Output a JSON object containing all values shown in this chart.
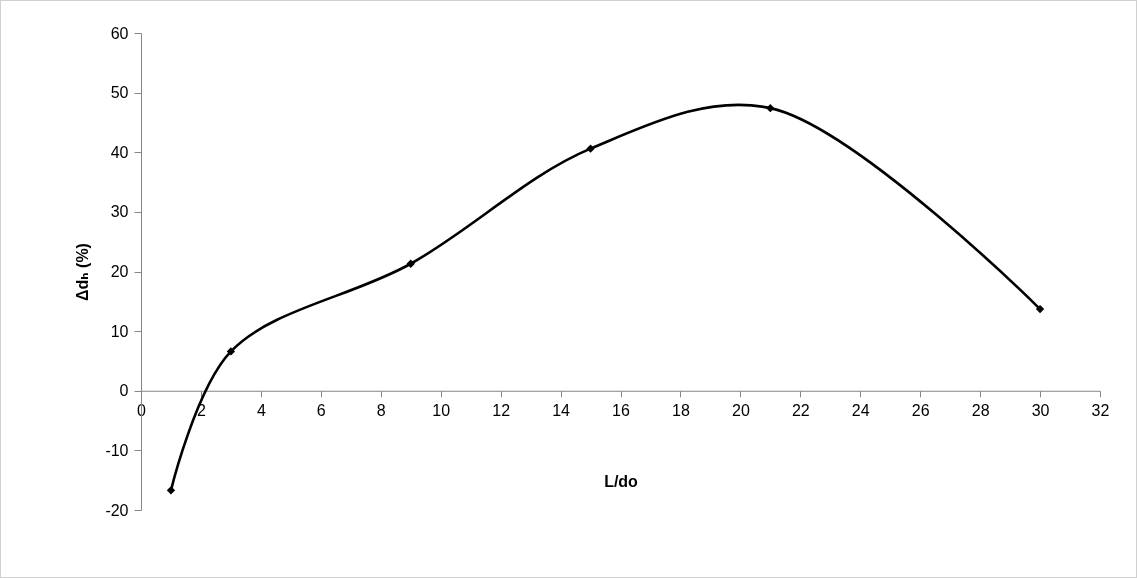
{
  "chart_data": {
    "type": "line",
    "xlabel": "L/do",
    "ylabel": "Δdₕ (%)",
    "x": [
      1,
      3,
      9,
      15,
      21,
      30
    ],
    "series": [
      {
        "color": "#000000",
        "values": [
          -16.7,
          6.6,
          21.3,
          40.6,
          47.4,
          13.7
        ]
      }
    ],
    "xlim": [
      0,
      32
    ],
    "xticks": [
      0,
      2,
      4,
      6,
      8,
      10,
      12,
      14,
      16,
      18,
      20,
      22,
      24,
      26,
      28,
      30,
      32
    ],
    "ylim": [
      -20,
      60
    ],
    "yticks": [
      -20,
      -10,
      0,
      10,
      20,
      30,
      40,
      50,
      60
    ],
    "grid": false,
    "marker": "diamond",
    "line_style": "solid"
  }
}
